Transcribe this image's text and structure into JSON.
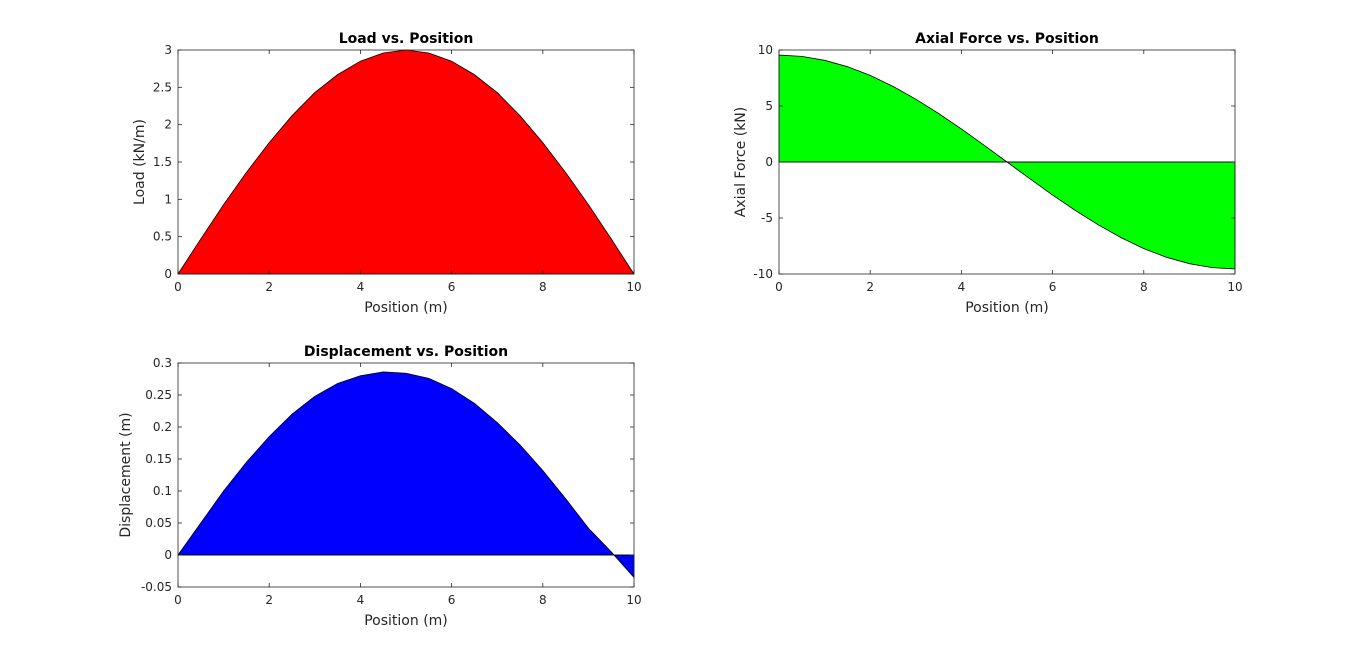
{
  "chart_data": [
    {
      "type": "area",
      "title": "Load vs. Position",
      "xlabel": "Position (m)",
      "ylabel": "Load (kN/m)",
      "xlim": [
        0,
        10
      ],
      "ylim": [
        0,
        3
      ],
      "xticks": [
        0,
        2,
        4,
        6,
        8,
        10
      ],
      "yticks": [
        0,
        0.5,
        1,
        1.5,
        2,
        2.5,
        3
      ],
      "fill_color": "#ff0000",
      "x": [
        0,
        0.5,
        1,
        1.5,
        2,
        2.5,
        3,
        3.5,
        4,
        4.5,
        5,
        5.5,
        6,
        6.5,
        7,
        7.5,
        8,
        8.5,
        9,
        9.5,
        10
      ],
      "y": [
        0,
        0.47,
        0.93,
        1.36,
        1.76,
        2.12,
        2.43,
        2.67,
        2.85,
        2.96,
        3.0,
        2.96,
        2.85,
        2.67,
        2.43,
        2.12,
        1.76,
        1.36,
        0.93,
        0.47,
        0
      ]
    },
    {
      "type": "area",
      "title": "Axial Force vs. Position",
      "xlabel": "Position (m)",
      "ylabel": "Axial Force (kN)",
      "xlim": [
        0,
        10
      ],
      "ylim": [
        -10,
        10
      ],
      "xticks": [
        0,
        2,
        4,
        6,
        8,
        10
      ],
      "yticks": [
        -10,
        -5,
        0,
        5,
        10
      ],
      "fill_color": "#00ff00",
      "x": [
        0,
        0.5,
        1,
        1.5,
        2,
        2.5,
        3,
        3.5,
        4,
        4.5,
        5,
        5.5,
        6,
        6.5,
        7,
        7.5,
        8,
        8.5,
        9,
        9.5,
        10
      ],
      "y": [
        9.55,
        9.43,
        9.08,
        8.51,
        7.73,
        6.75,
        5.61,
        4.33,
        2.95,
        1.49,
        0,
        -1.49,
        -2.95,
        -4.33,
        -5.61,
        -6.75,
        -7.73,
        -8.51,
        -9.08,
        -9.43,
        -9.55
      ]
    },
    {
      "type": "area",
      "title": "Displacement vs. Position",
      "xlabel": "Position (m)",
      "ylabel": "Displacement (m)",
      "xlim": [
        0,
        10
      ],
      "ylim": [
        -0.05,
        0.3
      ],
      "xticks": [
        0,
        2,
        4,
        6,
        8,
        10
      ],
      "yticks": [
        -0.05,
        0,
        0.05,
        0.1,
        0.15,
        0.2,
        0.25,
        0.3
      ],
      "fill_color": "#0000ff",
      "x": [
        0,
        0.5,
        1,
        1.5,
        2,
        2.5,
        3,
        3.5,
        4,
        4.5,
        5,
        5.5,
        6,
        6.5,
        7,
        7.5,
        8,
        8.5,
        9,
        9.5,
        10
      ],
      "y": [
        0,
        0.05,
        0.1,
        0.145,
        0.185,
        0.22,
        0.248,
        0.268,
        0.28,
        0.286,
        0.284,
        0.276,
        0.26,
        0.237,
        0.207,
        0.172,
        0.132,
        0.088,
        0.042,
        0.005,
        -0.035
      ]
    }
  ]
}
